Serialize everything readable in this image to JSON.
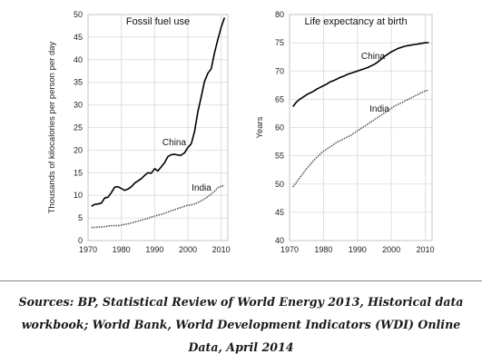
{
  "chart_data": [
    {
      "type": "line",
      "title": "Fossil fuel use",
      "xlabel": "",
      "ylabel": "Thousands of kilocalories per person per day",
      "xlim": [
        1970,
        2012
      ],
      "ylim": [
        0,
        50
      ],
      "xticks": [
        "1970",
        "1980",
        "1990",
        "2000",
        "2010"
      ],
      "yticks": [
        "0",
        "5",
        "10",
        "15",
        "20",
        "25",
        "30",
        "35",
        "40",
        "45",
        "50"
      ],
      "grid": true,
      "series": [
        {
          "name": "China",
          "style": "solid",
          "color": "#000000",
          "x": [
            1971,
            1972,
            1973,
            1974,
            1975,
            1976,
            1977,
            1978,
            1979,
            1980,
            1981,
            1982,
            1983,
            1984,
            1985,
            1986,
            1987,
            1988,
            1989,
            1990,
            1991,
            1992,
            1993,
            1994,
            1995,
            1996,
            1997,
            1998,
            1999,
            2000,
            2001,
            2002,
            2003,
            2004,
            2005,
            2006,
            2007,
            2008,
            2009,
            2010,
            2011
          ],
          "y": [
            7.6,
            8.0,
            8.1,
            8.3,
            9.4,
            9.6,
            10.6,
            11.8,
            11.9,
            11.5,
            11.1,
            11.4,
            11.9,
            12.7,
            13.2,
            13.7,
            14.4,
            15.0,
            14.9,
            15.9,
            15.4,
            16.3,
            17.2,
            18.6,
            19.0,
            19.1,
            18.9,
            18.9,
            19.4,
            20.6,
            21.4,
            24.1,
            28.5,
            31.8,
            35.2,
            37.0,
            38.0,
            41.5,
            44.5,
            47.2,
            49.3
          ]
        },
        {
          "name": "India",
          "style": "dotted",
          "color": "#555555",
          "x": [
            1971,
            1972,
            1973,
            1974,
            1975,
            1976,
            1977,
            1978,
            1979,
            1980,
            1981,
            1982,
            1983,
            1984,
            1985,
            1986,
            1987,
            1988,
            1989,
            1990,
            1991,
            1992,
            1993,
            1994,
            1995,
            1996,
            1997,
            1998,
            1999,
            2000,
            2001,
            2002,
            2003,
            2004,
            2005,
            2006,
            2007,
            2008,
            2009,
            2010,
            2011
          ],
          "y": [
            2.9,
            2.9,
            3.0,
            3.0,
            3.1,
            3.2,
            3.3,
            3.3,
            3.3,
            3.4,
            3.6,
            3.7,
            3.9,
            4.1,
            4.3,
            4.5,
            4.7,
            4.9,
            5.2,
            5.4,
            5.6,
            5.8,
            6.0,
            6.3,
            6.6,
            6.8,
            7.1,
            7.3,
            7.6,
            7.8,
            7.9,
            8.1,
            8.4,
            8.8,
            9.2,
            9.7,
            10.3,
            10.9,
            11.7,
            12.0,
            12.2
          ]
        }
      ]
    },
    {
      "type": "line",
      "title": "Life expectancy at birth",
      "xlabel": "",
      "ylabel": "Years",
      "xlim": [
        1970,
        2012
      ],
      "ylim": [
        40,
        80
      ],
      "xticks": [
        "1970",
        "1980",
        "1990",
        "2000",
        "2010"
      ],
      "yticks": [
        "40",
        "45",
        "50",
        "55",
        "60",
        "65",
        "70",
        "75",
        "80"
      ],
      "grid": true,
      "series": [
        {
          "name": "China",
          "style": "solid",
          "color": "#000000",
          "x": [
            1971,
            1972,
            1973,
            1974,
            1975,
            1976,
            1977,
            1978,
            1979,
            1980,
            1981,
            1982,
            1983,
            1984,
            1985,
            1986,
            1987,
            1988,
            1989,
            1990,
            1991,
            1992,
            1993,
            1994,
            1995,
            1996,
            1997,
            1998,
            1999,
            2000,
            2001,
            2002,
            2003,
            2004,
            2005,
            2006,
            2007,
            2008,
            2009,
            2010,
            2011
          ],
          "y": [
            63.7,
            64.5,
            65.0,
            65.4,
            65.8,
            66.1,
            66.4,
            66.8,
            67.1,
            67.4,
            67.7,
            68.1,
            68.3,
            68.6,
            68.9,
            69.1,
            69.4,
            69.6,
            69.8,
            70.0,
            70.2,
            70.4,
            70.6,
            70.9,
            71.2,
            71.6,
            72.1,
            72.6,
            73.0,
            73.4,
            73.7,
            74.0,
            74.2,
            74.4,
            74.5,
            74.6,
            74.7,
            74.8,
            74.9,
            75.0,
            75.0
          ]
        },
        {
          "name": "India",
          "style": "dotted",
          "color": "#555555",
          "x": [
            1971,
            1972,
            1973,
            1974,
            1975,
            1976,
            1977,
            1978,
            1979,
            1980,
            1981,
            1982,
            1983,
            1984,
            1985,
            1986,
            1987,
            1988,
            1989,
            1990,
            1991,
            1992,
            1993,
            1994,
            1995,
            1996,
            1997,
            1998,
            1999,
            2000,
            2001,
            2002,
            2003,
            2004,
            2005,
            2006,
            2007,
            2008,
            2009,
            2010,
            2011
          ],
          "y": [
            49.5,
            50.3,
            51.1,
            51.9,
            52.7,
            53.4,
            54.1,
            54.7,
            55.3,
            55.8,
            56.2,
            56.6,
            57.0,
            57.4,
            57.7,
            58.0,
            58.3,
            58.6,
            59.0,
            59.4,
            59.8,
            60.2,
            60.6,
            61.0,
            61.4,
            61.8,
            62.2,
            62.6,
            63.0,
            63.4,
            63.8,
            64.1,
            64.4,
            64.7,
            65.0,
            65.3,
            65.6,
            65.9,
            66.2,
            66.5,
            66.6
          ]
        }
      ]
    }
  ],
  "caption": "Sources: BP, Statistical Review of World Energy 2013, Historical data workbook; World Bank, World Development Indicators (WDI) Online Data, April 2014"
}
